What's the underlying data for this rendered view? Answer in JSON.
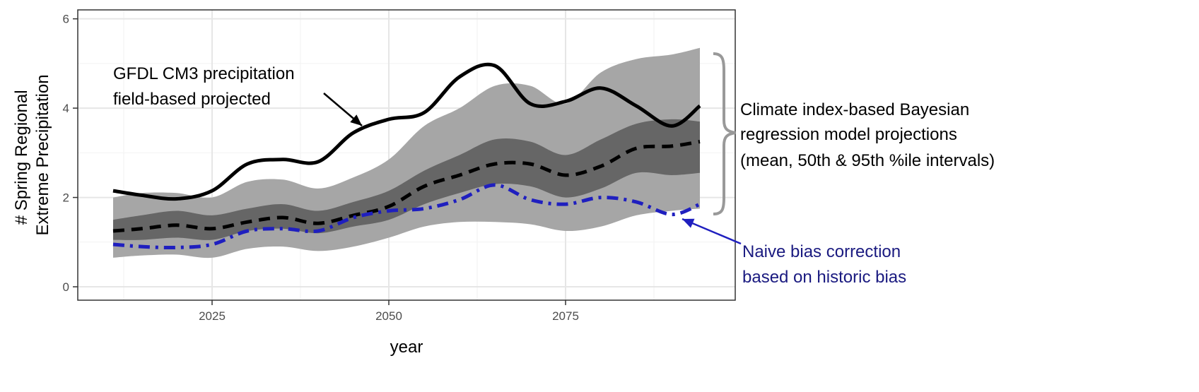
{
  "chart_data": {
    "type": "line",
    "title": "",
    "xlabel": "year",
    "ylabel_lines": [
      "# Spring Regional",
      "Extreme Precipitation"
    ],
    "xlim": [
      2006,
      2099
    ],
    "ylim": [
      -0.3,
      6.2
    ],
    "x_ticks": [
      2025,
      2050,
      2075
    ],
    "y_ticks": [
      0,
      2,
      4,
      6
    ],
    "grid": true,
    "legend": "none",
    "colors": {
      "band95": "#a6a6a6",
      "band50": "#666666",
      "mean": "#000000",
      "gfdl": "#000000",
      "naive": "#1f1fbf",
      "naive_text": "#1a1a80",
      "brace": "#999999"
    },
    "x": [
      2011,
      2015,
      2020,
      2025,
      2030,
      2035,
      2040,
      2045,
      2050,
      2055,
      2060,
      2065,
      2070,
      2075,
      2080,
      2085,
      2090,
      2094
    ],
    "series": [
      {
        "key": "gfdl",
        "style": "solid",
        "values": [
          2.15,
          2.05,
          1.97,
          2.15,
          2.75,
          2.85,
          2.8,
          3.45,
          3.75,
          3.9,
          4.7,
          4.95,
          4.1,
          4.15,
          4.45,
          4.05,
          3.6,
          4.05
        ]
      },
      {
        "key": "mean",
        "style": "dashed",
        "values": [
          1.25,
          1.3,
          1.38,
          1.3,
          1.45,
          1.55,
          1.42,
          1.6,
          1.8,
          2.25,
          2.5,
          2.75,
          2.75,
          2.5,
          2.7,
          3.1,
          3.15,
          3.25
        ]
      },
      {
        "key": "naive",
        "style": "dashdot",
        "values": [
          0.95,
          0.9,
          0.88,
          0.95,
          1.25,
          1.3,
          1.25,
          1.55,
          1.7,
          1.75,
          1.95,
          2.28,
          1.95,
          1.85,
          2.0,
          1.9,
          1.62,
          1.85
        ]
      }
    ],
    "band50": {
      "lower": [
        1.05,
        1.05,
        1.1,
        1.05,
        1.25,
        1.3,
        1.2,
        1.35,
        1.5,
        1.85,
        2.1,
        2.3,
        2.25,
        2.0,
        2.2,
        2.55,
        2.5,
        2.55
      ],
      "upper": [
        1.5,
        1.6,
        1.7,
        1.6,
        1.75,
        1.85,
        1.7,
        1.9,
        2.15,
        2.6,
        2.95,
        3.3,
        3.25,
        2.95,
        3.3,
        3.65,
        3.75,
        3.7
      ]
    },
    "band95": {
      "lower": [
        0.65,
        0.7,
        0.72,
        0.65,
        0.85,
        0.9,
        0.8,
        0.9,
        1.1,
        1.35,
        1.45,
        1.45,
        1.4,
        1.25,
        1.35,
        1.6,
        1.7,
        1.75
      ],
      "upper": [
        2.0,
        2.1,
        2.1,
        2.0,
        2.35,
        2.4,
        2.2,
        2.45,
        2.85,
        3.6,
        4.0,
        4.5,
        4.5,
        4.1,
        4.8,
        5.1,
        5.2,
        5.35
      ]
    },
    "annotations": {
      "gfdl_label": [
        "GFDL CM3 precipitation",
        "field-based projected"
      ],
      "bayes_label": [
        "Climate index-based Bayesian",
        "regression model projections",
        "(mean, 50th & 95th %ile intervals)"
      ],
      "naive_label": [
        "Naive bias correction",
        "based on historic bias"
      ]
    }
  }
}
